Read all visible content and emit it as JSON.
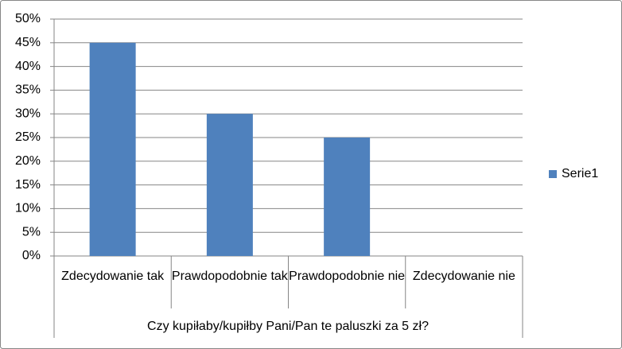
{
  "chart_data": {
    "type": "bar",
    "categories": [
      "Zdecydowanie tak",
      "Prawdopodobnie tak",
      "Prawdopodobnie nie",
      "Zdecydowanie nie"
    ],
    "series": [
      {
        "name": "Serie1",
        "color": "#4f81bd",
        "values": [
          45,
          30,
          25,
          0
        ]
      }
    ],
    "x_label": "Czy kupiłaby/kupiłby Pani/Pan te paluszki za 5 zł?",
    "ylim": [
      0,
      50
    ],
    "yticks": [
      {
        "value": 0,
        "label": "0%"
      },
      {
        "value": 5,
        "label": "5%"
      },
      {
        "value": 10,
        "label": "10%"
      },
      {
        "value": 15,
        "label": "15%"
      },
      {
        "value": 20,
        "label": "20%"
      },
      {
        "value": 25,
        "label": "25%"
      },
      {
        "value": 30,
        "label": "30%"
      },
      {
        "value": 35,
        "label": "35%"
      },
      {
        "value": 40,
        "label": "40%"
      },
      {
        "value": 45,
        "label": "45%"
      },
      {
        "value": 50,
        "label": "50%"
      }
    ],
    "grid": true,
    "legend": "right"
  }
}
